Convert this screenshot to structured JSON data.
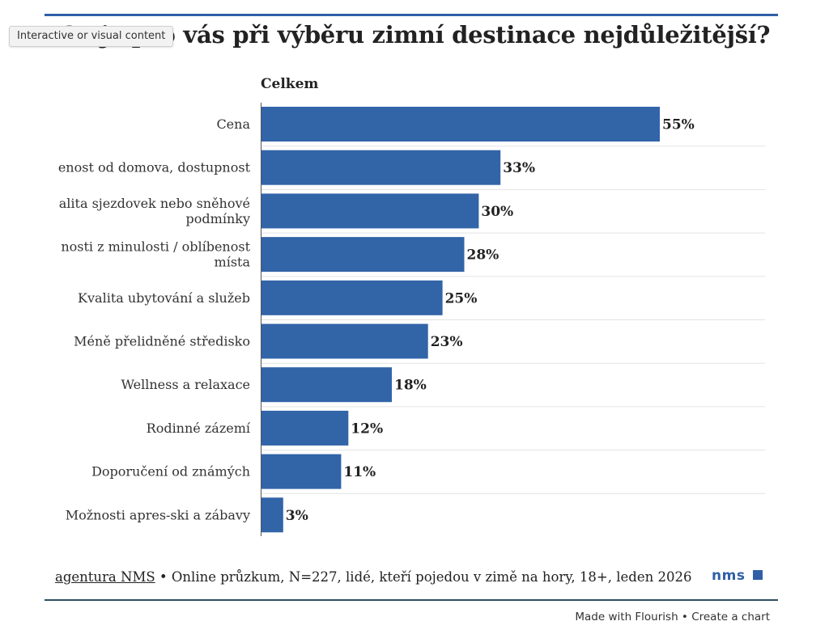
{
  "tooltip": "Interactive or visual content",
  "chart_data": {
    "type": "bar",
    "orientation": "horizontal",
    "title": "Co je pro vás při výběru zimní destinace nejdůležitější?",
    "subtitle": "Celkem",
    "categories": [
      "Cena",
      "enost od domova, dostupnost",
      "alita sjezdovek nebo sněhové podmínky",
      "nosti z minulosti / oblíbenost místa",
      "Kvalita ubytování a služeb",
      "Méně přelidněné středisko",
      "Wellness a relaxace",
      "Rodinné zázemí",
      "Doporučení od známých",
      "Možnosti apres-ski a zábavy"
    ],
    "category_lines": [
      [
        "Cena"
      ],
      [
        "enost od domova, dostupnost"
      ],
      [
        "alita sjezdovek nebo sněhové",
        "podmínky"
      ],
      [
        "nosti z minulosti / oblíbenost",
        "místa"
      ],
      [
        "Kvalita ubytování a služeb"
      ],
      [
        "Méně přelidněné středisko"
      ],
      [
        "Wellness a relaxace"
      ],
      [
        "Rodinné zázemí"
      ],
      [
        "Doporučení od známých"
      ],
      [
        "Možnosti apres-ski a zábavy"
      ]
    ],
    "values": [
      55,
      33,
      30,
      28,
      25,
      23,
      18,
      12,
      11,
      3
    ],
    "value_labels": [
      "55%",
      "33%",
      "30%",
      "28%",
      "25%",
      "23%",
      "18%",
      "12%",
      "11%",
      "3%"
    ],
    "xlim": [
      0,
      55
    ],
    "unit": "%",
    "bar_color": "#3264a8",
    "grid": "horizontal separators"
  },
  "footer": {
    "source_link": "agentura NMS",
    "separator": " • ",
    "note": "Online průzkum, N=227, lidé, kteří pojedou v zimě na hory, 18+, leden 2026"
  },
  "logo_text": "nms",
  "flourish": {
    "made_with": "Made with Flourish",
    "separator": " • ",
    "create": "Create a chart"
  }
}
